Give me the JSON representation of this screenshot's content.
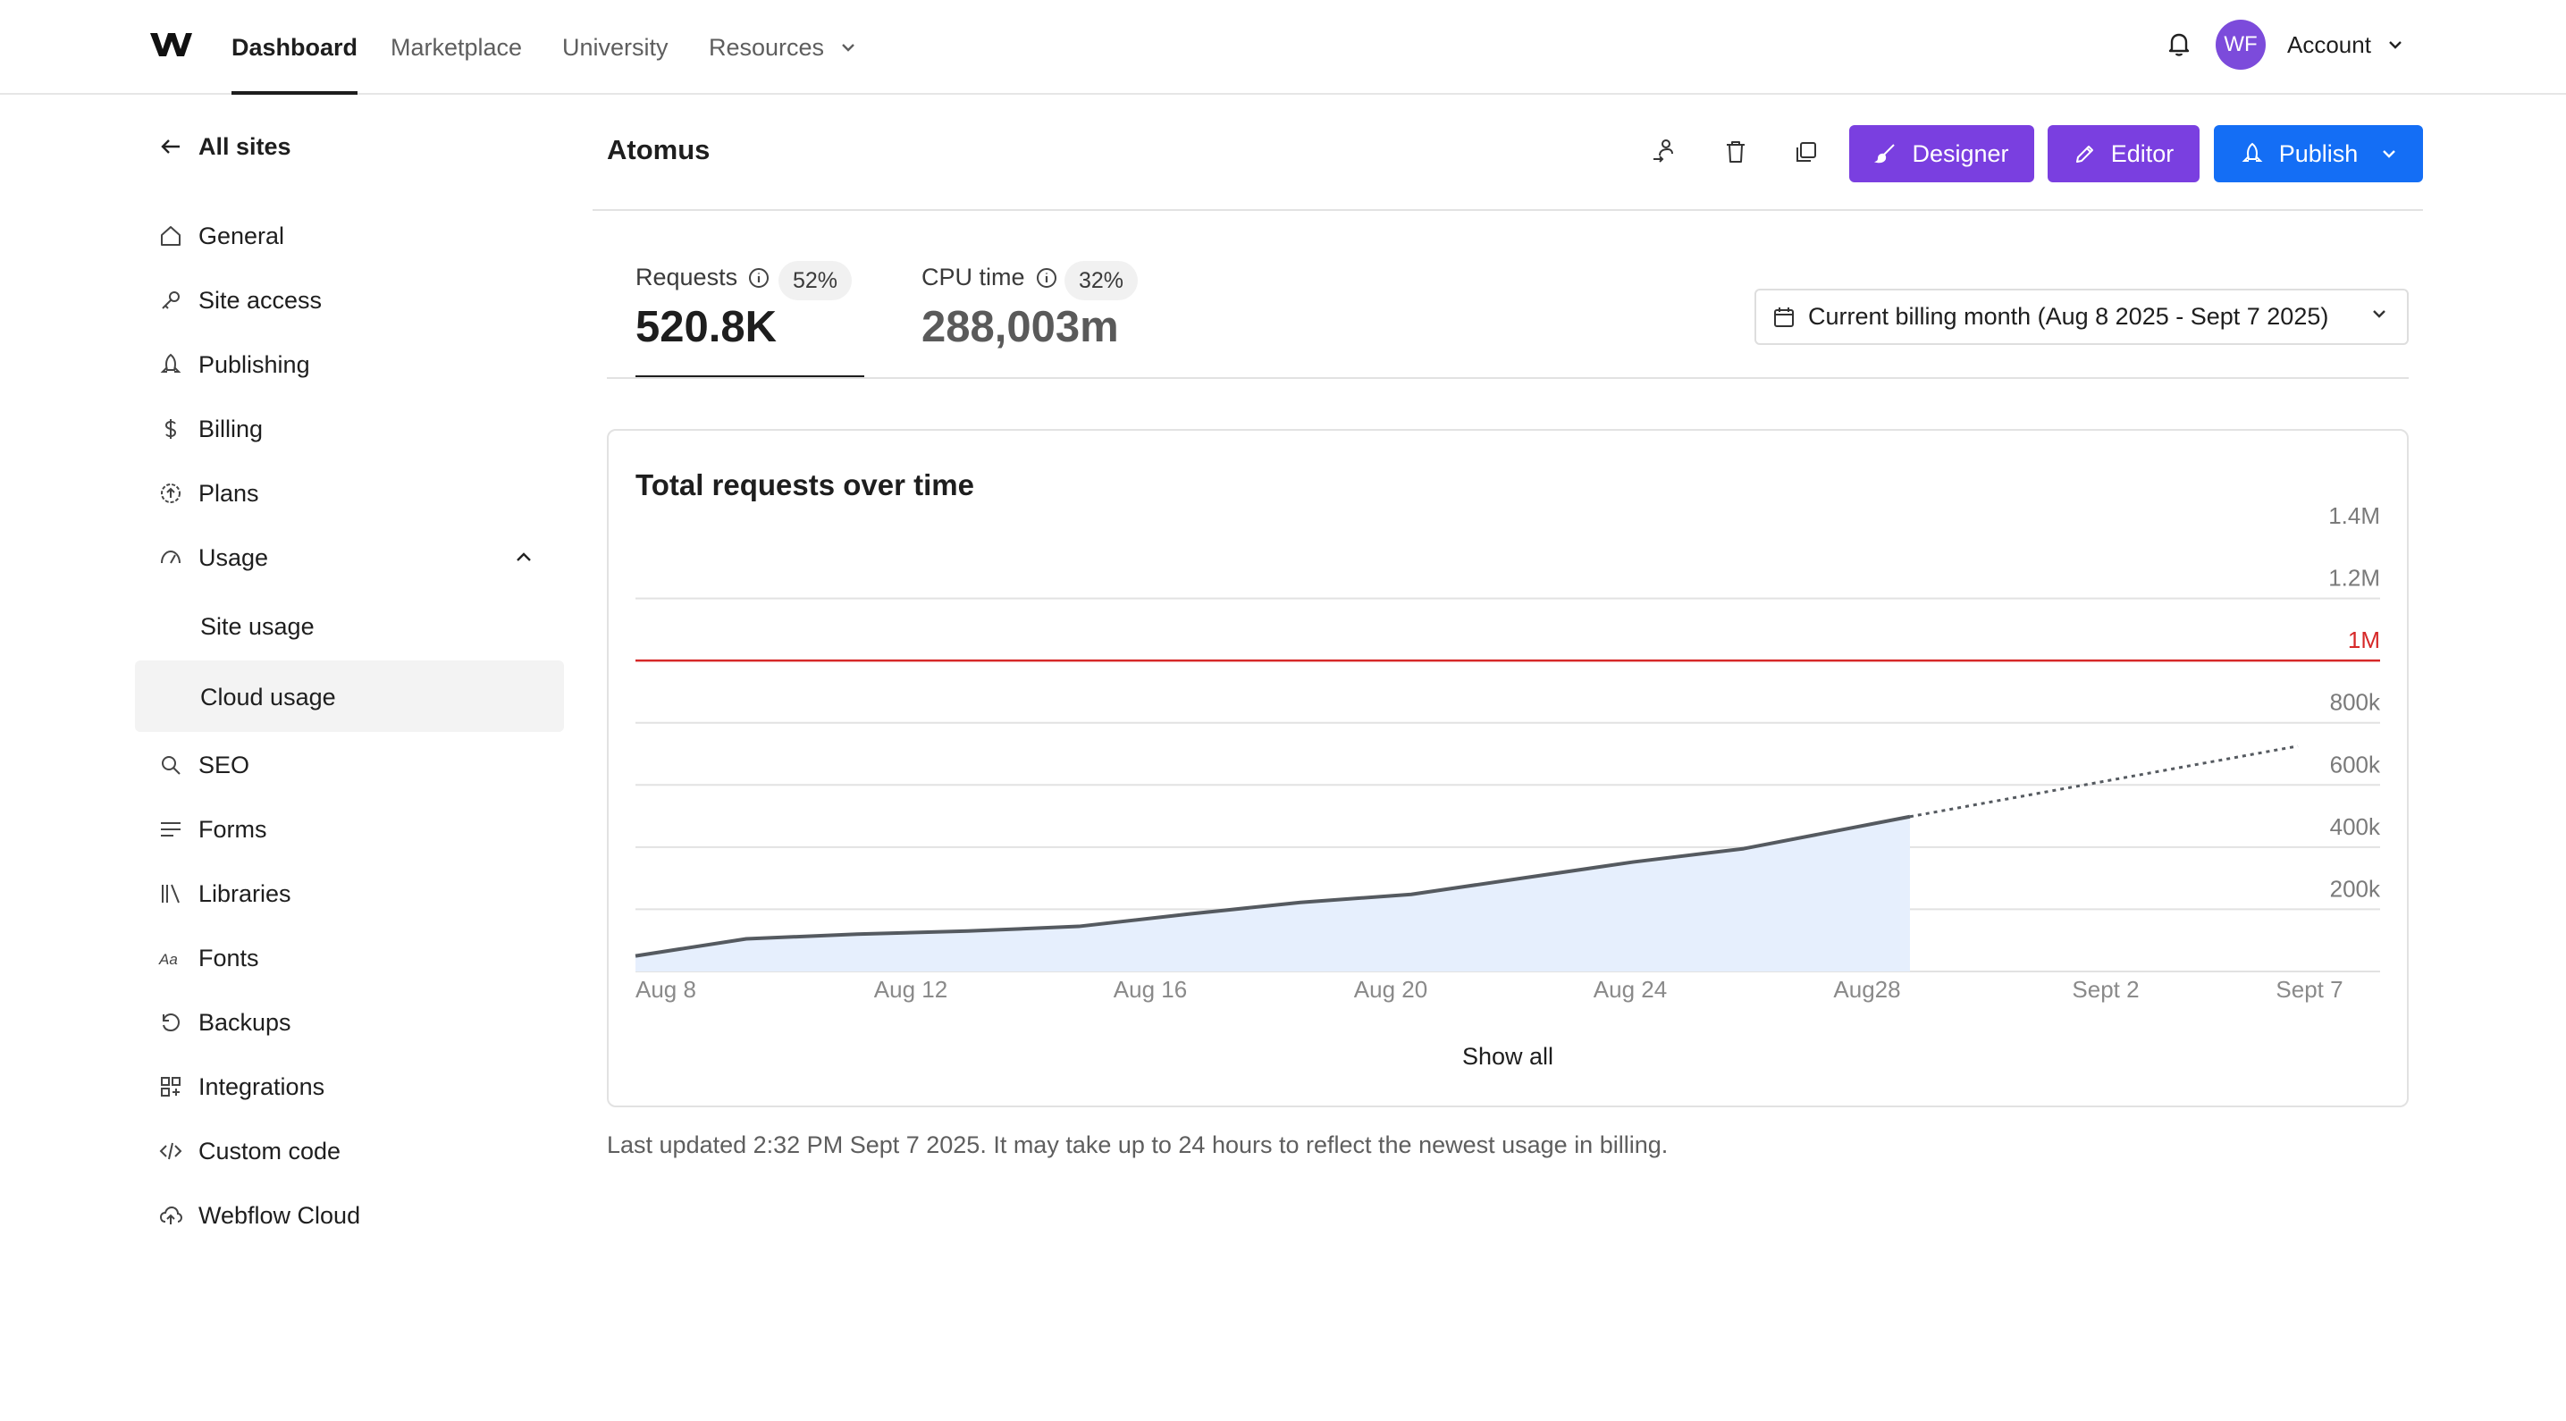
{
  "nav": {
    "items": [
      "Dashboard",
      "Marketplace",
      "University",
      "Resources"
    ],
    "account_initials": "WF",
    "account_label": "Account"
  },
  "sidebar": {
    "back_label": "All sites",
    "items": [
      "General",
      "Site access",
      "Publishing",
      "Billing",
      "Plans",
      "Usage"
    ],
    "usage_sub": [
      "Site usage",
      "Cloud usage"
    ],
    "items_after": [
      "SEO",
      "Forms",
      "Libraries",
      "Fonts",
      "Backups",
      "Integrations",
      "Custom code",
      "Webflow Cloud"
    ]
  },
  "header": {
    "site_name": "Atomus",
    "designer_label": "Designer",
    "editor_label": "Editor",
    "publish_label": "Publish"
  },
  "metrics": {
    "requests_label": "Requests",
    "requests_pct": "52%",
    "requests_value": "520.8K",
    "cpu_label": "CPU time",
    "cpu_pct": "32%",
    "cpu_value": "288,003m"
  },
  "billing_period": "Current billing month (Aug 8 2025 - Sept 7 2025)",
  "colors": {
    "accent_purple": "#7a3fe0",
    "accent_blue": "#146ef5",
    "limit_red": "#d62828",
    "area_fill": "#e6effd",
    "line": "#555a60"
  },
  "chart_data": {
    "type": "area",
    "title": "Total requests over time",
    "x_ticks": [
      "Aug 8",
      "Aug 12",
      "Aug 16",
      "Aug 20",
      "Aug 24",
      "Aug28",
      "Sept 2",
      "Sept 7"
    ],
    "y_ticks": [
      "1.4M",
      "1.2M",
      "1M",
      "800k",
      "600k",
      "400k",
      "200k"
    ],
    "ylim": [
      0,
      1400000
    ],
    "limit": {
      "value": 1000000,
      "label": "1M"
    },
    "series": [
      {
        "x": [
          "2025-08-08",
          "2025-08-10",
          "2025-08-12",
          "2025-08-14",
          "2025-08-16",
          "2025-08-18",
          "2025-08-20",
          "2025-08-22",
          "2025-08-24",
          "2025-08-26",
          "2025-08-28",
          "2025-08-31"
        ],
        "y": [
          50000,
          105000,
          120000,
          130000,
          145000,
          185000,
          222000,
          248000,
          300000,
          352000,
          395000,
          498000
        ]
      }
    ],
    "projection": {
      "x": [
        "2025-08-31",
        "2025-09-07"
      ],
      "y": [
        498000,
        725000
      ]
    },
    "grid": true,
    "show_all_label": "Show all"
  },
  "footnote": "Last updated 2:32 PM Sept 7 2025. It may take up to 24 hours to reflect the newest usage in billing."
}
